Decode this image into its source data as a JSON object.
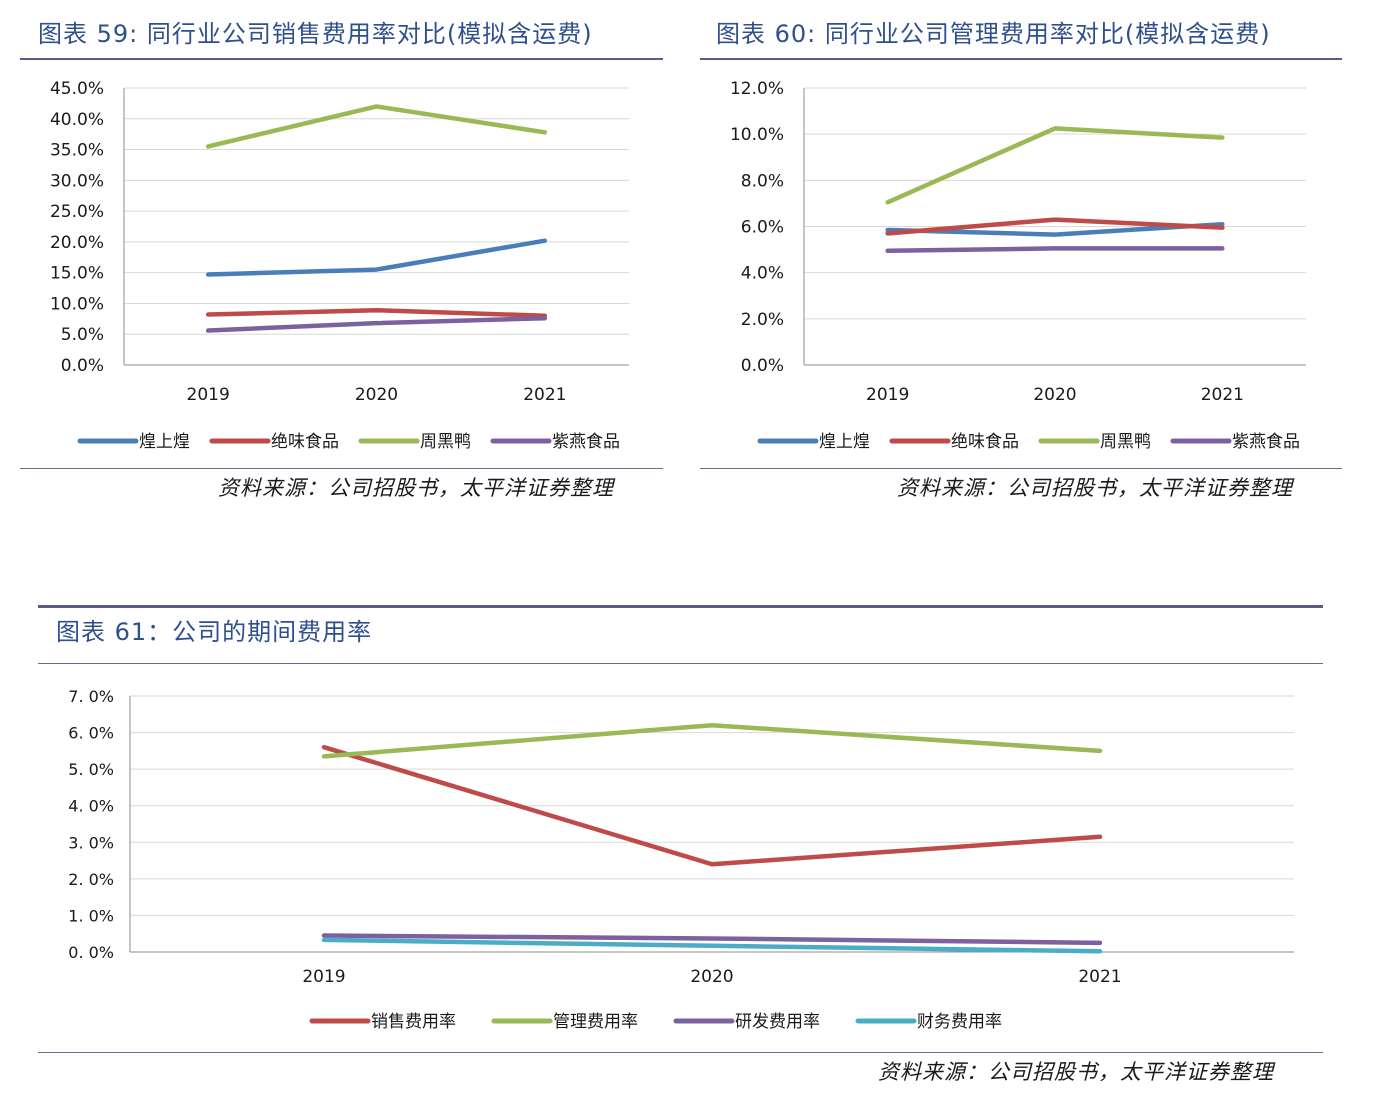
{
  "charts": [
    {
      "title": "图表 59: 同行业公司销售费用率对比(模拟含运费)",
      "source": "资料来源：公司招股书，太平洋证券整理"
    },
    {
      "title": "图表 60: 同行业公司管理费用率对比(模拟含运费)",
      "source": "资料来源：公司招股书，太平洋证券整理"
    },
    {
      "title": "图表 61：公司的期间费用率",
      "source": "资料来源：公司招股书，太平洋证券整理"
    }
  ],
  "chart_data": [
    {
      "type": "line",
      "title": "同行业公司销售费用率对比(模拟含运费)",
      "categories": [
        "2019",
        "2020",
        "2021"
      ],
      "ylim": [
        0,
        45
      ],
      "yticks": [
        "0.0%",
        "5.0%",
        "10.0%",
        "15.0%",
        "20.0%",
        "25.0%",
        "30.0%",
        "35.0%",
        "40.0%",
        "45.0%"
      ],
      "ystep": 5,
      "legend_position": "bottom",
      "series": [
        {
          "name": "煌上煌",
          "color": "#4a7ebb",
          "values": [
            14.7,
            15.5,
            20.2
          ]
        },
        {
          "name": "绝味食品",
          "color": "#be4b48",
          "values": [
            8.2,
            8.9,
            8.0
          ]
        },
        {
          "name": "周黑鸭",
          "color": "#98b954",
          "values": [
            35.5,
            42.0,
            37.8
          ]
        },
        {
          "name": "紫燕食品",
          "color": "#7d60a0",
          "values": [
            5.6,
            6.8,
            7.6
          ]
        }
      ]
    },
    {
      "type": "line",
      "title": "同行业公司管理费用率对比(模拟含运费)",
      "categories": [
        "2019",
        "2020",
        "2021"
      ],
      "ylim": [
        0,
        12
      ],
      "yticks": [
        "0.0%",
        "2.0%",
        "4.0%",
        "6.0%",
        "8.0%",
        "10.0%",
        "12.0%"
      ],
      "ystep": 2,
      "legend_position": "bottom",
      "series": [
        {
          "name": "煌上煌",
          "color": "#4a7ebb",
          "values": [
            5.85,
            5.65,
            6.1
          ]
        },
        {
          "name": "绝味食品",
          "color": "#be4b48",
          "values": [
            5.7,
            6.3,
            5.95
          ]
        },
        {
          "name": "周黑鸭",
          "color": "#98b954",
          "values": [
            7.05,
            10.25,
            9.85
          ]
        },
        {
          "name": "紫燕食品",
          "color": "#7d60a0",
          "values": [
            4.95,
            5.05,
            5.05
          ]
        }
      ]
    },
    {
      "type": "line",
      "title": "公司的期间费用率",
      "categories": [
        "2019",
        "2020",
        "2021"
      ],
      "ylim": [
        0,
        7
      ],
      "yticks": [
        "0. 0%",
        "1. 0%",
        "2. 0%",
        "3. 0%",
        "4. 0%",
        "5. 0%",
        "6. 0%",
        "7. 0%"
      ],
      "ystep": 1,
      "legend_position": "bottom",
      "series": [
        {
          "name": "销售费用率",
          "color": "#be4b48",
          "values": [
            5.6,
            2.4,
            3.15
          ]
        },
        {
          "name": "管理费用率",
          "color": "#98b954",
          "values": [
            5.35,
            6.2,
            5.5
          ]
        },
        {
          "name": "研发费用率",
          "color": "#7d60a0",
          "values": [
            0.45,
            0.37,
            0.25
          ]
        },
        {
          "name": "财务费用率",
          "color": "#4bacc6",
          "values": [
            0.33,
            0.17,
            0.02
          ]
        }
      ]
    }
  ]
}
